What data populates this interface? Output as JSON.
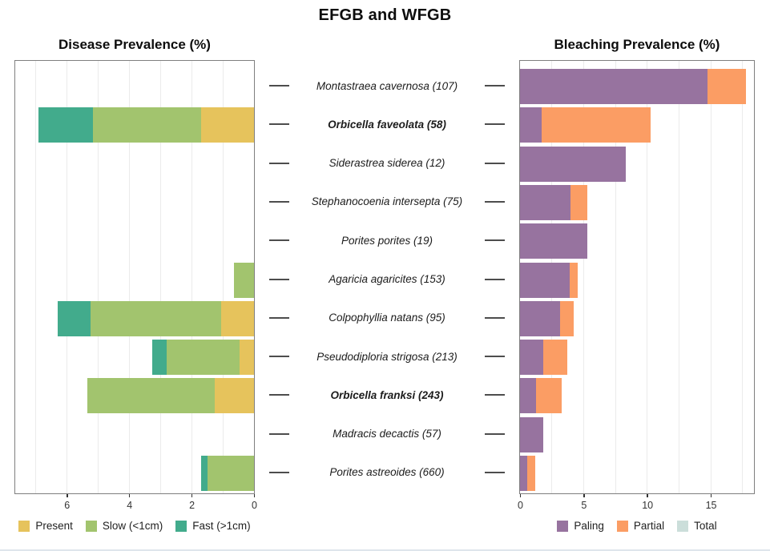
{
  "page": {
    "title": "EFGB and WFGB"
  },
  "species": [
    {
      "label": "Montastraea cavernosa (107)",
      "bold": false
    },
    {
      "label": "Orbicella faveolata (58)",
      "bold": true
    },
    {
      "label": "Siderastrea siderea (12)",
      "bold": false
    },
    {
      "label": "Stephanocoenia intersepta (75)",
      "bold": false
    },
    {
      "label": "Porites porites (19)",
      "bold": false
    },
    {
      "label": "Agaricia agaricites (153)",
      "bold": false
    },
    {
      "label": "Colpophyllia natans (95)",
      "bold": false
    },
    {
      "label": "Pseudodiploria strigosa (213)",
      "bold": false
    },
    {
      "label": "Orbicella franksi (243)",
      "bold": true
    },
    {
      "label": "Madracis decactis (57)",
      "bold": false
    },
    {
      "label": "Porites astreoides (660)",
      "bold": false
    }
  ],
  "chart_data": [
    {
      "id": "disease",
      "type": "bar",
      "orientation": "horizontal-stacked",
      "title": "Disease Prevalence (%)",
      "axis_reversed": true,
      "xlim": [
        0,
        7.65
      ],
      "xticks": [
        6,
        4,
        2,
        0
      ],
      "gridlines": [
        1,
        2,
        3,
        4,
        5,
        6,
        7
      ],
      "grid": true,
      "legend_position": "bottom",
      "categories": [
        "Montastraea cavernosa (107)",
        "Orbicella faveolata (58)",
        "Siderastrea siderea (12)",
        "Stephanocoenia intersepta (75)",
        "Porites porites (19)",
        "Agaricia agaricites (153)",
        "Colpophyllia natans (95)",
        "Pseudodiploria strigosa (213)",
        "Orbicella franksi (243)",
        "Madracis decactis (57)",
        "Porites astreoides (660)"
      ],
      "series": [
        {
          "name": "Present",
          "color": "#e6c35c",
          "values": [
            0,
            1.7,
            0,
            0,
            0,
            0,
            1.05,
            0.45,
            1.25,
            0,
            0
          ]
        },
        {
          "name": "Slow (<1cm)",
          "color": "#a2c46e",
          "values": [
            0,
            3.45,
            0,
            0,
            0,
            0.65,
            4.2,
            2.35,
            4.1,
            0,
            1.5
          ]
        },
        {
          "name": "Fast (>1cm)",
          "color": "#42ab8c",
          "values": [
            0,
            1.75,
            0,
            0,
            0,
            0,
            1.05,
            0.45,
            0,
            0,
            0.2
          ]
        }
      ]
    },
    {
      "id": "bleaching",
      "type": "bar",
      "orientation": "horizontal-stacked",
      "title": "Bleaching Prevalence (%)",
      "axis_reversed": false,
      "xlim": [
        0,
        18.4
      ],
      "xticks": [
        0,
        5,
        10,
        15
      ],
      "gridlines": [
        2.5,
        5,
        7.5,
        10,
        12.5,
        15,
        17.5
      ],
      "grid": true,
      "legend_position": "bottom",
      "categories": [
        "Montastraea cavernosa (107)",
        "Orbicella faveolata (58)",
        "Siderastrea siderea (12)",
        "Stephanocoenia intersepta (75)",
        "Porites porites (19)",
        "Agaricia agaricites (153)",
        "Colpophyllia natans (95)",
        "Pseudodiploria strigosa (213)",
        "Orbicella franksi (243)",
        "Madracis decactis (57)",
        "Porites astreoides (660)"
      ],
      "series": [
        {
          "name": "Paling",
          "color": "#97739f",
          "values": [
            14.75,
            1.7,
            8.3,
            3.95,
            5.3,
            3.9,
            3.15,
            1.85,
            1.25,
            1.8,
            0.55
          ]
        },
        {
          "name": "Partial",
          "color": "#fb9d64",
          "values": [
            3.0,
            8.6,
            0,
            1.35,
            0,
            0.65,
            1.05,
            1.9,
            2.0,
            0,
            0.65
          ]
        },
        {
          "name": "Total",
          "color": "#cbdeda",
          "values": [
            0,
            0,
            0,
            0,
            0,
            0,
            0,
            0,
            0,
            0,
            0
          ]
        }
      ]
    }
  ]
}
